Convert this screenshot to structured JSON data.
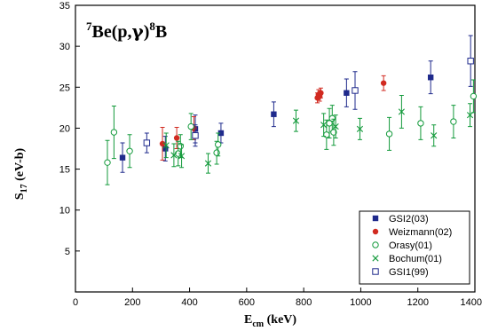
{
  "chart_data": {
    "type": "scatter",
    "title_parts": [
      "7",
      "Be(p,",
      "γ",
      ")",
      "8",
      "B"
    ],
    "xlabel": {
      "main": "E",
      "sub": "cm",
      "rest": " (keV)"
    },
    "ylabel": {
      "main": "S",
      "sub": "17",
      "rest": " (eV-b)"
    },
    "xlim": [
      0,
      1400
    ],
    "ylim": [
      0,
      35
    ],
    "xticks": [
      0,
      200,
      400,
      600,
      800,
      1000,
      1200,
      1400
    ],
    "yticks": [
      5,
      10,
      15,
      20,
      25,
      30,
      35
    ],
    "grid": false,
    "legend_position": "bottom-right",
    "series": [
      {
        "name": "GSI2(03)",
        "marker": "filled-square",
        "color": "#1f2a8c",
        "points": [
          {
            "x": 165,
            "y": 16.4,
            "err": 1.8
          },
          {
            "x": 315,
            "y": 17.5,
            "err": 1.5
          },
          {
            "x": 420,
            "y": 19.9,
            "err": 1.7
          },
          {
            "x": 510,
            "y": 19.4,
            "err": 1.2
          },
          {
            "x": 695,
            "y": 21.7,
            "err": 1.5
          },
          {
            "x": 950,
            "y": 24.3,
            "err": 1.7
          },
          {
            "x": 1245,
            "y": 26.2,
            "err": 2.0
          }
        ]
      },
      {
        "name": "Weizmann(02)",
        "marker": "filled-circle",
        "color": "#d12a20",
        "points": [
          {
            "x": 305,
            "y": 18.1,
            "err": 2.0
          },
          {
            "x": 355,
            "y": 18.8,
            "err": 1.3
          },
          {
            "x": 415,
            "y": 20.0,
            "err": 1.4
          },
          {
            "x": 848,
            "y": 23.7,
            "err": 0.6
          },
          {
            "x": 852,
            "y": 24.1,
            "err": 0.6
          },
          {
            "x": 856,
            "y": 23.9,
            "err": 0.6
          },
          {
            "x": 860,
            "y": 24.3,
            "err": 0.6
          },
          {
            "x": 1080,
            "y": 25.5,
            "err": 0.9
          }
        ]
      },
      {
        "name": "Orasy(01)",
        "marker": "open-circle",
        "color": "#139a3b",
        "points": [
          {
            "x": 112,
            "y": 15.8,
            "err": 2.7
          },
          {
            "x": 135,
            "y": 19.5,
            "err": 3.2
          },
          {
            "x": 190,
            "y": 17.2,
            "err": 2.0
          },
          {
            "x": 360,
            "y": 16.9,
            "err": 1.5
          },
          {
            "x": 368,
            "y": 17.8,
            "err": 1.4
          },
          {
            "x": 405,
            "y": 20.2,
            "err": 1.6
          },
          {
            "x": 495,
            "y": 17.0,
            "err": 1.4
          },
          {
            "x": 500,
            "y": 18.0,
            "err": 1.4
          },
          {
            "x": 880,
            "y": 19.2,
            "err": 1.8
          },
          {
            "x": 890,
            "y": 20.6,
            "err": 1.8
          },
          {
            "x": 900,
            "y": 21.2,
            "err": 1.6
          },
          {
            "x": 905,
            "y": 19.5,
            "err": 1.6
          },
          {
            "x": 1100,
            "y": 19.3,
            "err": 2.0
          },
          {
            "x": 1210,
            "y": 20.6,
            "err": 2.0
          },
          {
            "x": 1325,
            "y": 20.8,
            "err": 2.0
          },
          {
            "x": 1395,
            "y": 23.9,
            "err": 2.0
          }
        ]
      },
      {
        "name": "Bochum(01)",
        "marker": "x",
        "color": "#139a3b",
        "points": [
          {
            "x": 318,
            "y": 17.9,
            "err": 1.5
          },
          {
            "x": 345,
            "y": 16.7,
            "err": 1.4
          },
          {
            "x": 372,
            "y": 16.6,
            "err": 1.4
          },
          {
            "x": 465,
            "y": 15.7,
            "err": 1.2
          },
          {
            "x": 773,
            "y": 20.9,
            "err": 1.3
          },
          {
            "x": 870,
            "y": 20.4,
            "err": 1.4
          },
          {
            "x": 912,
            "y": 20.2,
            "err": 1.4
          },
          {
            "x": 997,
            "y": 19.9,
            "err": 1.3
          },
          {
            "x": 1143,
            "y": 22.0,
            "err": 2.0
          },
          {
            "x": 1256,
            "y": 19.1,
            "err": 1.3
          },
          {
            "x": 1383,
            "y": 21.6,
            "err": 1.4
          }
        ]
      },
      {
        "name": "GSI1(99)",
        "marker": "open-square",
        "color": "#1f2a8c",
        "points": [
          {
            "x": 250,
            "y": 18.2,
            "err": 1.2
          },
          {
            "x": 420,
            "y": 19.1,
            "err": 1.3
          },
          {
            "x": 980,
            "y": 24.6,
            "err": 2.3
          },
          {
            "x": 1385,
            "y": 28.2,
            "err": 3.1
          }
        ]
      }
    ]
  }
}
